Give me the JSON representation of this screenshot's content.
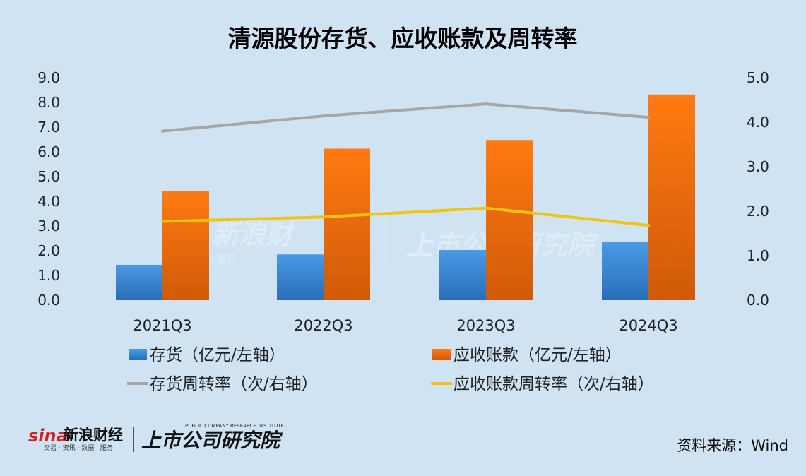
{
  "chart_data": {
    "type": "bar",
    "title": "清源股份存货、应收账款及周转率",
    "categories": [
      "2021Q3",
      "2022Q3",
      "2023Q3",
      "2024Q3"
    ],
    "left_axis": {
      "ylim": [
        0,
        9
      ],
      "ticks": [
        "0.0",
        "1.0",
        "2.0",
        "3.0",
        "4.0",
        "5.0",
        "6.0",
        "7.0",
        "8.0",
        "9.0"
      ]
    },
    "right_axis": {
      "ylim": [
        0,
        5
      ],
      "ticks": [
        "0.0",
        "1.0",
        "2.0",
        "3.0",
        "4.0",
        "5.0"
      ]
    },
    "series": [
      {
        "name": "存货（亿元/左轴）",
        "kind": "bar",
        "axis": "left",
        "color": "#3a87d6",
        "values": [
          1.43,
          1.85,
          2.03,
          2.35
        ]
      },
      {
        "name": "应收账款（亿元/左轴）",
        "kind": "bar",
        "axis": "left",
        "color": "#f0700f",
        "values": [
          4.42,
          6.13,
          6.48,
          8.32
        ]
      },
      {
        "name": "存货周转率（次/右轴）",
        "kind": "line",
        "axis": "right",
        "color": "#a6a6a6",
        "values": [
          3.8,
          4.14,
          4.41,
          4.11
        ]
      },
      {
        "name": "应收账款周转率（次/右轴）",
        "kind": "line",
        "axis": "right",
        "color": "#f2c314",
        "values": [
          1.77,
          1.87,
          2.07,
          1.68
        ]
      }
    ],
    "grid": false,
    "legend_placement": "bottom"
  },
  "source": "资料来源：Wind",
  "watermark": {
    "brand": "新浪财",
    "institute": "上市公司研究院",
    "sub": "· 资讯 ·"
  },
  "logo": {
    "sina": "sina",
    "name": "新浪财经",
    "sub": "交易 · 资讯 · 数据 · 服务",
    "institute": "上市公司研究院",
    "institute_en": "PUBLIC COMPANY RESEARCH INSTITUTE"
  }
}
